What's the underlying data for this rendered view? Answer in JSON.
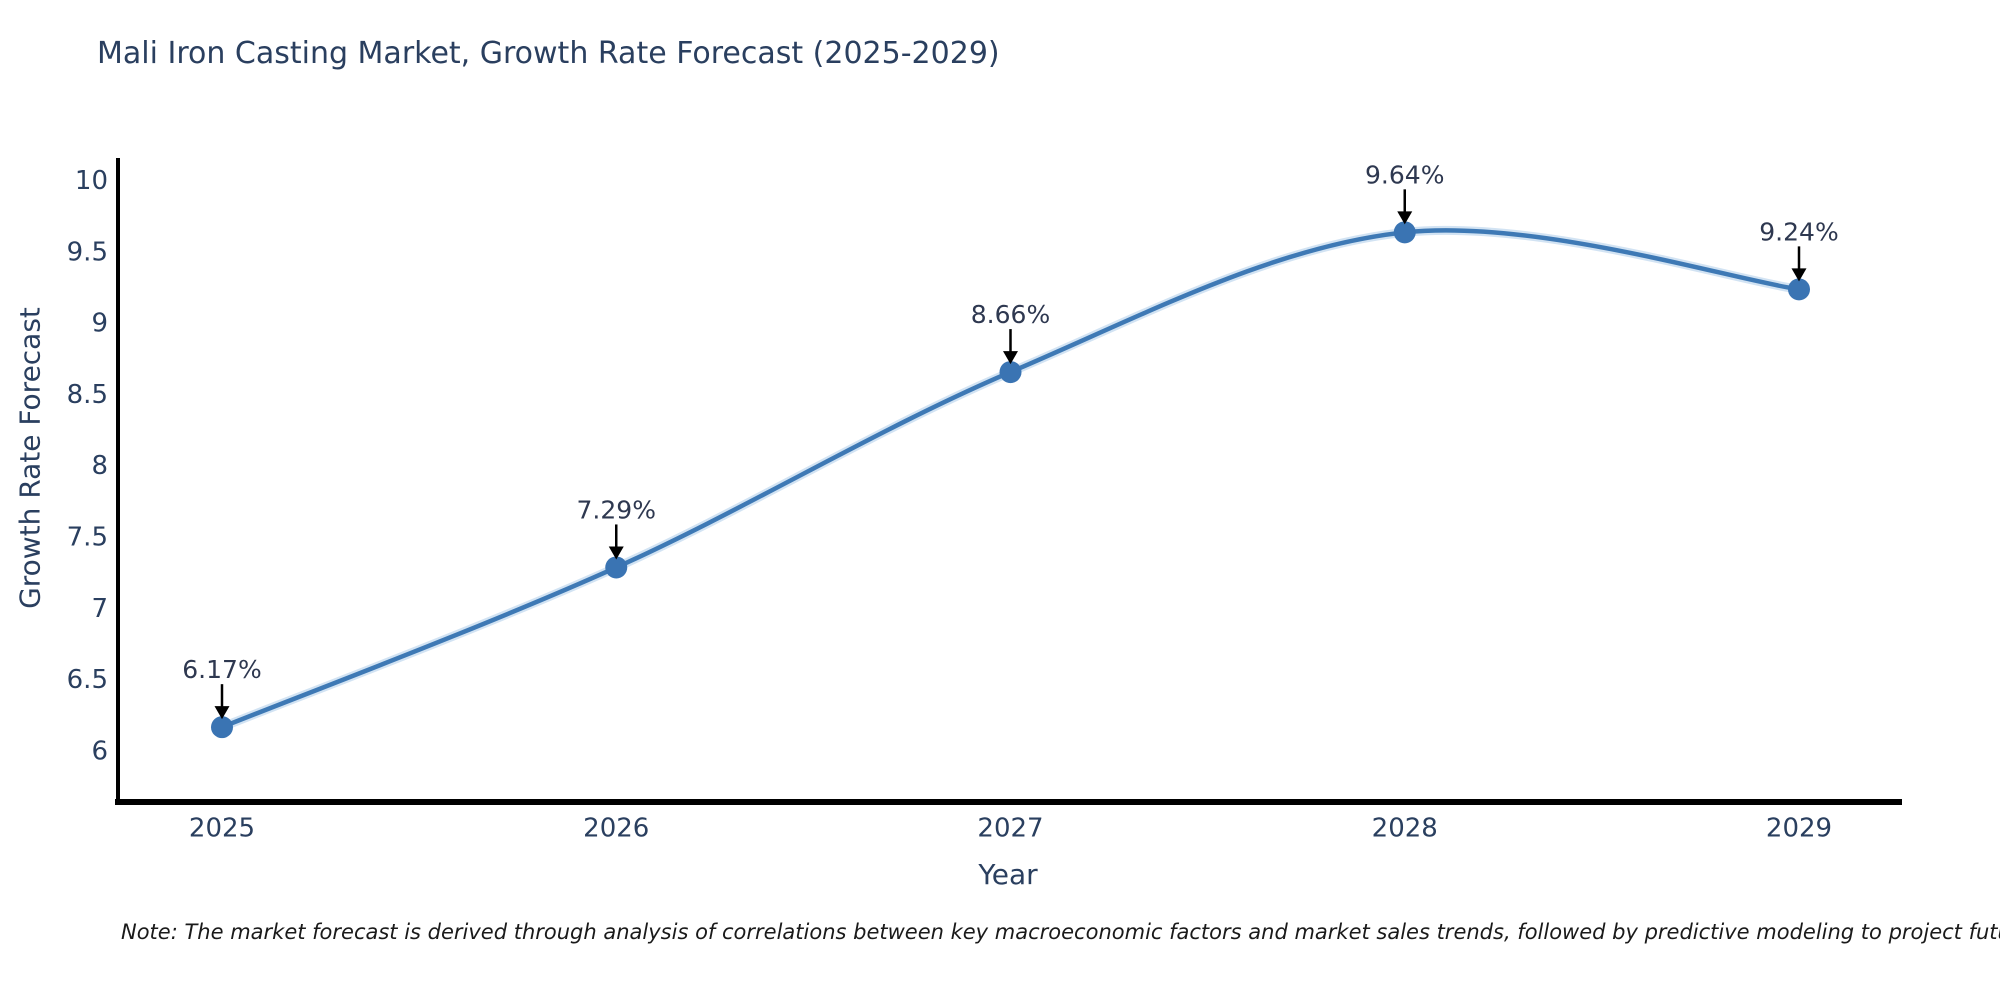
{
  "chart_data": {
    "type": "line",
    "title": "Mali Iron Casting Market, Growth Rate Forecast (2025-2029)",
    "xlabel": "Year",
    "ylabel": "Growth Rate Forecast",
    "note": "Note: The market forecast is derived through analysis of correlations between key macroeconomic factors and market sales trends, followed by predictive modeling to project future sales",
    "categories": [
      "2025",
      "2026",
      "2027",
      "2028",
      "2029"
    ],
    "values": [
      6.17,
      7.29,
      8.66,
      9.64,
      9.24
    ],
    "point_labels": [
      "6.17%",
      "7.29%",
      "8.66%",
      "9.64%",
      "9.24%"
    ],
    "yticks": [
      10,
      9.5,
      9,
      8.5,
      8,
      7.5,
      7,
      6.5,
      6
    ],
    "ylim": [
      5.65,
      10.15
    ],
    "grid": false,
    "legend": "none",
    "smooth": true,
    "colors": {
      "line": "#3e79b5",
      "line_halo": "#9cc0e4",
      "marker": "#3a74b3",
      "axis": "#000000",
      "tick_label": "#2a3f5f",
      "title": "#2a3f5f",
      "annotation_text": "#2e3850",
      "annotation_arrow": "#000000",
      "note_text": "#1a1a1a"
    }
  }
}
